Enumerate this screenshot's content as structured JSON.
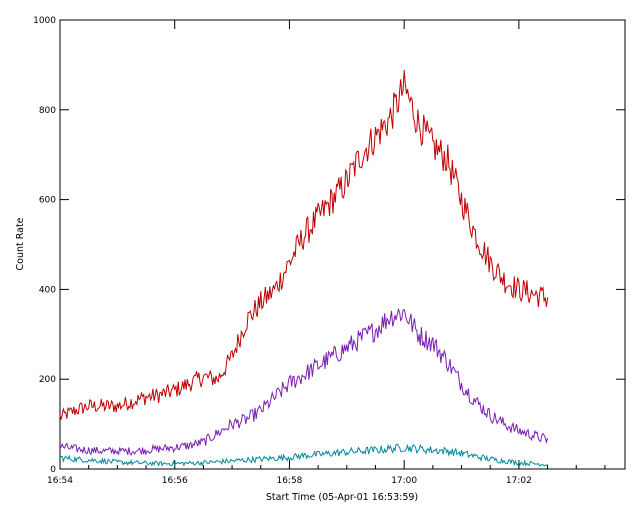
{
  "chart_data": {
    "type": "line",
    "xlabel": "Start Time (05-Apr-01 16:53:59)",
    "ylabel": "Count Rate",
    "x_unit": "minutes",
    "xlim": [
      0,
      9.85
    ],
    "ylim": [
      0,
      1000
    ],
    "x_ticks": [
      {
        "value": 0,
        "label": "16:54"
      },
      {
        "value": 2,
        "label": "16:56"
      },
      {
        "value": 4,
        "label": "16:58"
      },
      {
        "value": 6,
        "label": "17:00"
      },
      {
        "value": 8,
        "label": "17:02"
      }
    ],
    "y_ticks": [
      {
        "value": 0,
        "label": "0"
      },
      {
        "value": 200,
        "label": "200"
      },
      {
        "value": 400,
        "label": "400"
      },
      {
        "value": 600,
        "label": "600"
      },
      {
        "value": 800,
        "label": "800"
      },
      {
        "value": 1000,
        "label": "1000"
      }
    ],
    "grid": false,
    "series": [
      {
        "color": "#c00000",
        "x": [
          0.0,
          0.25,
          0.5,
          0.75,
          1.0,
          1.25,
          1.5,
          1.75,
          2.0,
          2.25,
          2.5,
          2.75,
          3.0,
          3.25,
          3.5,
          3.75,
          4.0,
          4.25,
          4.5,
          4.75,
          5.0,
          5.25,
          5.5,
          5.75,
          6.0,
          6.25,
          6.5,
          6.75,
          7.0,
          7.25,
          7.5,
          7.75,
          8.0,
          8.25,
          8.5
        ],
        "y": [
          115,
          130,
          140,
          140,
          140,
          150,
          160,
          165,
          175,
          190,
          205,
          200,
          250,
          330,
          370,
          400,
          460,
          520,
          560,
          600,
          640,
          700,
          740,
          780,
          850,
          770,
          720,
          690,
          600,
          520,
          460,
          420,
          400,
          390,
          380
        ]
      },
      {
        "color": "#7a1fb4",
        "x": [
          0.0,
          0.25,
          0.5,
          0.75,
          1.0,
          1.25,
          1.5,
          1.75,
          2.0,
          2.25,
          2.5,
          2.75,
          3.0,
          3.25,
          3.5,
          3.75,
          4.0,
          4.25,
          4.5,
          4.75,
          5.0,
          5.25,
          5.5,
          5.75,
          6.0,
          6.25,
          6.5,
          6.75,
          7.0,
          7.25,
          7.5,
          7.75,
          8.0,
          8.25,
          8.5
        ],
        "y": [
          50,
          45,
          42,
          40,
          40,
          40,
          42,
          45,
          48,
          52,
          60,
          80,
          100,
          110,
          130,
          160,
          190,
          210,
          230,
          250,
          270,
          290,
          310,
          340,
          350,
          300,
          280,
          240,
          190,
          150,
          120,
          100,
          85,
          75,
          65
        ]
      },
      {
        "color": "#008b9a",
        "x": [
          0.0,
          0.25,
          0.5,
          0.75,
          1.0,
          1.25,
          1.5,
          1.75,
          2.0,
          2.25,
          2.5,
          2.75,
          3.0,
          3.25,
          3.5,
          3.75,
          4.0,
          4.25,
          4.5,
          4.75,
          5.0,
          5.25,
          5.5,
          5.75,
          6.0,
          6.25,
          6.5,
          6.75,
          7.0,
          7.25,
          7.5,
          7.75,
          8.0,
          8.25,
          8.5
        ],
        "y": [
          25,
          22,
          20,
          18,
          15,
          14,
          13,
          12,
          12,
          13,
          14,
          16,
          18,
          20,
          22,
          24,
          26,
          30,
          32,
          35,
          38,
          40,
          42,
          45,
          48,
          45,
          42,
          40,
          35,
          28,
          22,
          18,
          14,
          12,
          10
        ]
      }
    ]
  }
}
